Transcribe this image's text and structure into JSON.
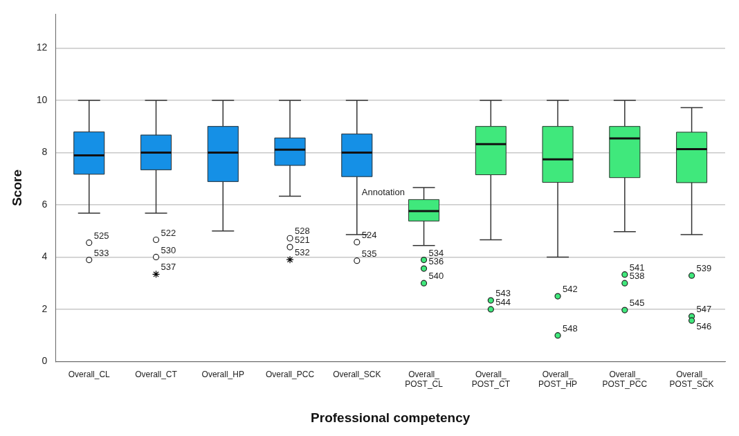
{
  "chart_data": {
    "type": "box",
    "xlabel": "Professional competency",
    "ylabel": "Score",
    "categories": [
      "Overall_CL",
      "Overall_CT",
      "Overall_HP",
      "Overall_PCC",
      "Overall_SCK",
      "Overall_POST_CL",
      "Overall_POST_CT",
      "Overall_POST_HP",
      "Overall_POST_PCC",
      "Overall_POST_SCK"
    ],
    "colors": [
      "#1590e6",
      "#1590e6",
      "#1590e6",
      "#1590e6",
      "#1590e6",
      "#40e87c",
      "#40e87c",
      "#40e87c",
      "#40e87c",
      "#40e87c"
    ],
    "boxes": [
      {
        "low": 5.68,
        "q1": 7.17,
        "median": 7.89,
        "q3": 8.79,
        "high": 10
      },
      {
        "low": 5.68,
        "q1": 7.34,
        "median": 8,
        "q3": 8.67,
        "high": 10
      },
      {
        "low": 5.0,
        "q1": 6.89,
        "median": 8,
        "q3": 9.0,
        "high": 10
      },
      {
        "low": 6.33,
        "q1": 7.51,
        "median": 8.11,
        "q3": 8.56,
        "high": 10
      },
      {
        "low": 4.86,
        "q1": 7.08,
        "median": 8,
        "q3": 8.71,
        "high": 10
      },
      {
        "low": 4.44,
        "q1": 5.38,
        "median": 5.76,
        "q3": 6.2,
        "high": 6.66
      },
      {
        "low": 4.66,
        "q1": 7.15,
        "median": 8.32,
        "q3": 9.0,
        "high": 10
      },
      {
        "low": 4.0,
        "q1": 6.86,
        "median": 7.74,
        "q3": 9.0,
        "high": 10
      },
      {
        "low": 4.97,
        "q1": 7.04,
        "median": 8.54,
        "q3": 9.0,
        "high": 10
      },
      {
        "low": 4.86,
        "q1": 6.85,
        "median": 8.13,
        "q3": 8.78,
        "high": 9.72
      }
    ],
    "series": [
      {
        "type": "scatter",
        "marker": "circle",
        "color": "#ffffff",
        "x": [
          "Overall_CL",
          "Overall_CL",
          "Overall_CT",
          "Overall_CT",
          "Overall_PCC",
          "Overall_PCC",
          "Overall_SCK",
          "Overall_SCK"
        ],
        "values": [
          4.55,
          3.89,
          4.66,
          4.0,
          4.72,
          4.38,
          4.57,
          3.86
        ]
      },
      {
        "type": "scatter",
        "marker": "circle",
        "color": "#40e87c",
        "x": [
          "Overall_POST_CL",
          "Overall_POST_CL",
          "Overall_POST_CL",
          "Overall_POST_CT",
          "Overall_POST_CT",
          "Overall_POST_HP",
          "Overall_POST_HP",
          "Overall_POST_PCC",
          "Overall_POST_PCC",
          "Overall_POST_PCC",
          "Overall_POST_SCK",
          "Overall_POST_SCK",
          "Overall_POST_SCK"
        ],
        "values": [
          3.89,
          3.56,
          3.0,
          2.34,
          2.0,
          2.5,
          1.0,
          3.33,
          3.0,
          1.97,
          3.29,
          1.73,
          1.57
        ]
      },
      {
        "type": "scatter",
        "marker": "cross",
        "color": "#000000",
        "x": [
          "Overall_CT",
          "Overall_PCC"
        ],
        "values": [
          3.34,
          3.9
        ]
      }
    ],
    "ylim": [
      0,
      13.3
    ],
    "yticks": [
      0,
      2,
      4,
      6,
      8,
      10,
      12
    ],
    "grid": "y",
    "legend": false,
    "annotations": [
      {
        "text": "525",
        "x": "Overall_CL",
        "y": 4.55
      },
      {
        "text": "533",
        "x": "Overall_CL",
        "y": 3.89
      },
      {
        "text": "522",
        "x": "Overall_CT",
        "y": 4.66
      },
      {
        "text": "530",
        "x": "Overall_CT",
        "y": 4.0
      },
      {
        "text": "537",
        "x": "Overall_CT",
        "y": 3.34
      },
      {
        "text": "528",
        "x": "Overall_PCC",
        "y": 4.72
      },
      {
        "text": "521",
        "x": "Overall_PCC",
        "y": 4.38
      },
      {
        "text": "532",
        "x": "Overall_PCC",
        "y": 3.9
      },
      {
        "text": "524",
        "x": "Overall_SCK",
        "y": 4.57
      },
      {
        "text": "535",
        "x": "Overall_SCK",
        "y": 3.86
      },
      {
        "text": "Annotation",
        "x": "Overall_SCK",
        "y": 6.2
      },
      {
        "text": "534",
        "x": "Overall_POST_CL",
        "y": 3.89
      },
      {
        "text": "536",
        "x": "Overall_POST_CL",
        "y": 3.56
      },
      {
        "text": "540",
        "x": "Overall_POST_CL",
        "y": 3.0
      },
      {
        "text": "543",
        "x": "Overall_POST_CT",
        "y": 2.34
      },
      {
        "text": "544",
        "x": "Overall_POST_CT",
        "y": 2.0
      },
      {
        "text": "542",
        "x": "Overall_POST_HP",
        "y": 2.5
      },
      {
        "text": "548",
        "x": "Overall_POST_HP",
        "y": 1.0
      },
      {
        "text": "541",
        "x": "Overall_POST_PCC",
        "y": 3.33
      },
      {
        "text": "538",
        "x": "Overall_POST_PCC",
        "y": 3.0
      },
      {
        "text": "545",
        "x": "Overall_POST_PCC",
        "y": 1.97
      },
      {
        "text": "539",
        "x": "Overall_POST_SCK",
        "y": 3.29
      },
      {
        "text": "547",
        "x": "Overall_POST_SCK",
        "y": 1.73
      },
      {
        "text": "546",
        "x": "Overall_POST_SCK",
        "y": 1.57
      }
    ]
  }
}
